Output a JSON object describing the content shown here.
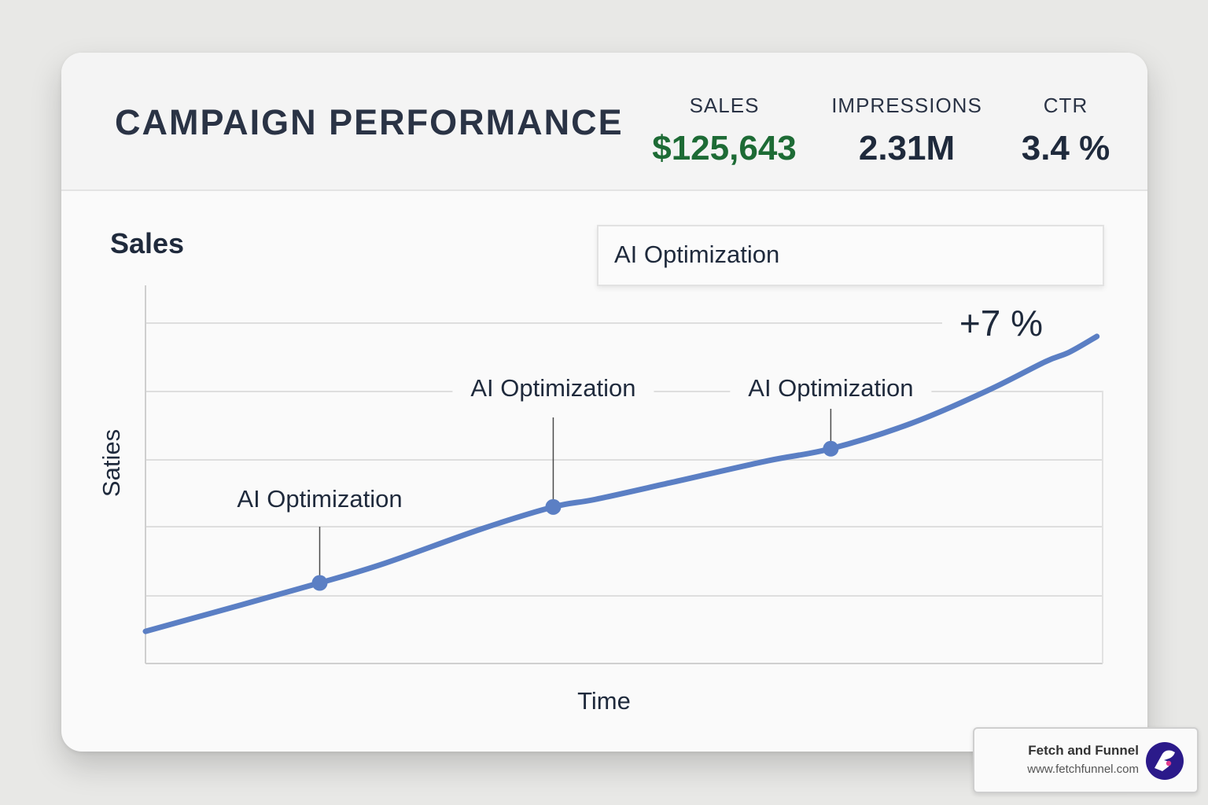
{
  "header": {
    "title": "CAMPAIGN PERFORMANCE",
    "metrics": [
      {
        "label": "SALES",
        "value": "$125,643",
        "color": "#1d6b35"
      },
      {
        "label": "IMPRESSIONS",
        "value": "2.31M"
      },
      {
        "label": "CTR",
        "value": "3.4 %"
      }
    ]
  },
  "chart_section_title": "Sales",
  "legend_label": "AI Optimization",
  "watermark": {
    "name": "Fetch and Funnel",
    "url": "www.fetchfunnel.com",
    "logo_icon": "fetch-and-funnel-logo-icon"
  },
  "chart_data": {
    "type": "line",
    "title": "Sales",
    "xlabel": "Time",
    "ylabel": "Saties",
    "grid": true,
    "xlim": [
      0,
      100
    ],
    "ylim": [
      0,
      100
    ],
    "series": [
      {
        "name": "Sales",
        "color": "#5b7fc4",
        "x": [
          0,
          10,
          18.2,
          25,
          35,
          42.6,
          47,
          55,
          65,
          71.6,
          80,
          88,
          94,
          96.5,
          99.4
        ],
        "y": [
          8.5,
          15.5,
          21.3,
          26.5,
          35.5,
          41.4,
          43.4,
          47.9,
          53.6,
          56.8,
          63.5,
          72.2,
          79.8,
          82.3,
          86.5
        ]
      }
    ],
    "markers": [
      {
        "x": 18.2,
        "y": 21.3
      },
      {
        "x": 42.6,
        "y": 41.4
      },
      {
        "x": 71.6,
        "y": 56.8
      }
    ],
    "annotations": [
      {
        "text": "AI Optimization",
        "x": 18.2,
        "y": 21.3
      },
      {
        "text": "AI Optimization",
        "x": 42.6,
        "y": 41.4
      },
      {
        "text": "AI Optimization",
        "x": 71.6,
        "y": 56.8
      },
      {
        "text": "+7 %",
        "x": 99.4,
        "y": 86.5
      }
    ]
  }
}
